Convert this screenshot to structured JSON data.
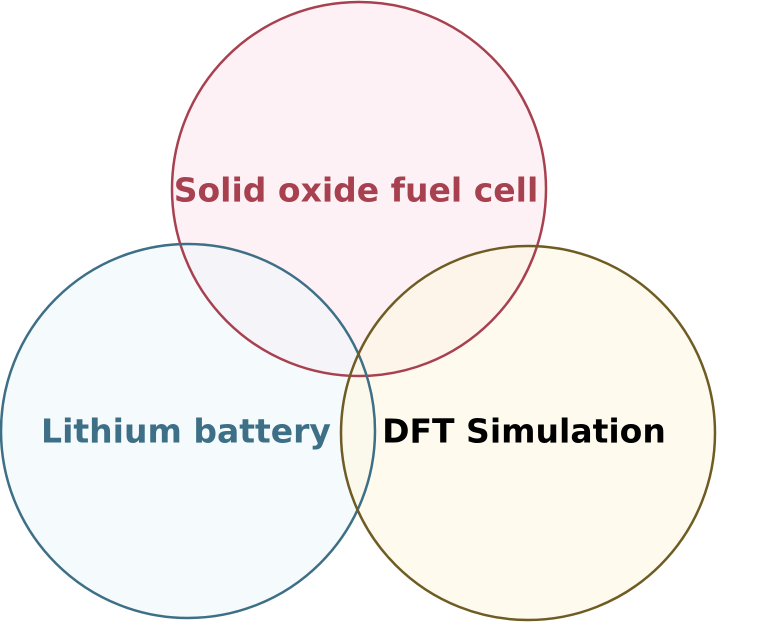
{
  "diagram": {
    "type": "venn",
    "sets": [
      {
        "id": "top",
        "label": "Solid oxide fuel cell",
        "stroke_color": "#a8414f",
        "fill_color": "#fff3f7",
        "label_color": "#a8414f"
      },
      {
        "id": "left",
        "label": "Lithium battery",
        "stroke_color": "#3d6f86",
        "fill_color": "#f5faff",
        "label_color": "#3d6f86"
      },
      {
        "id": "right",
        "label": "DFT Simulation",
        "stroke_color": "#6e5c23",
        "fill_color": "#fffbef",
        "label_color": "#000000"
      }
    ]
  }
}
